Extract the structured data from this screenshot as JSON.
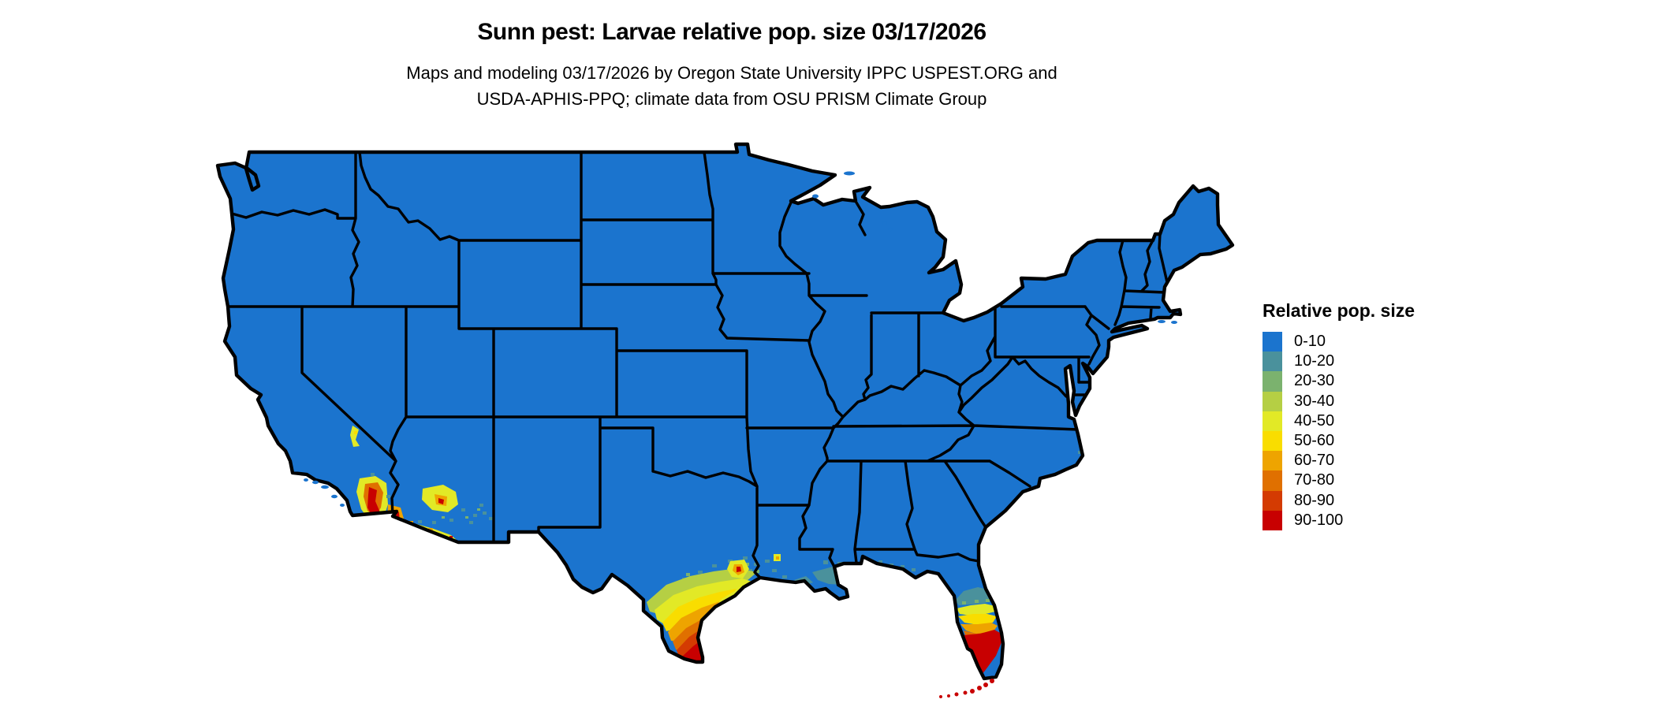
{
  "header": {
    "title": "Sunn pest: Larvae relative pop. size 03/17/2026",
    "subtitle_line1": "Maps and modeling 03/17/2026 by Oregon State University IPPC USPEST.ORG and",
    "subtitle_line2": "USDA-APHIS-PPQ; climate data from OSU PRISM Climate Group"
  },
  "legend": {
    "title": "Relative pop. size",
    "items": [
      {
        "label": "0-10",
        "color": "#1B74CE"
      },
      {
        "label": "10-20",
        "color": "#4A919C"
      },
      {
        "label": "20-30",
        "color": "#7BB26E"
      },
      {
        "label": "30-40",
        "color": "#B5CF44"
      },
      {
        "label": "40-50",
        "color": "#E2E926"
      },
      {
        "label": "50-60",
        "color": "#F9DD00"
      },
      {
        "label": "60-70",
        "color": "#EEA400"
      },
      {
        "label": "70-80",
        "color": "#E07000"
      },
      {
        "label": "80-90",
        "color": "#D43B02"
      },
      {
        "label": "90-100",
        "color": "#C80001"
      }
    ]
  },
  "map": {
    "region": "Continental United States",
    "base_level": "0-10",
    "state_border_color": "#000000",
    "background_color": "#FFFFFF",
    "hotspots": [
      {
        "area": "southern Texas Rio Grande Valley",
        "levels": "30-40 through 90-100"
      },
      {
        "area": "southern Florida peninsula and Keys",
        "levels": "10-20 through 90-100"
      },
      {
        "area": "southern California Imperial Valley",
        "levels": "40-50 through 90-100"
      },
      {
        "area": "southwestern Arizona Yuma and Phoenix",
        "levels": "10-20 through 90-100"
      },
      {
        "area": "Texas-Louisiana Gulf Coast",
        "levels": "10-20 through 90-100"
      }
    ]
  }
}
